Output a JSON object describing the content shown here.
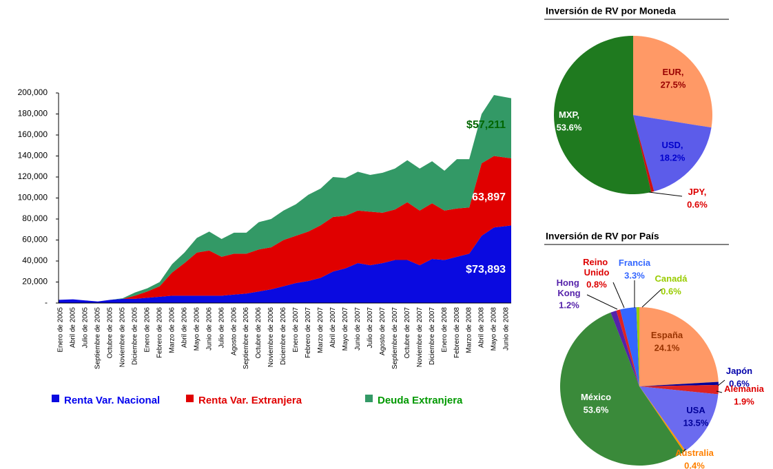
{
  "chart_data": [
    {
      "type": "area",
      "stacked": true,
      "categories": [
        "Enero de 2005",
        "Abril de 2005",
        "Julio de 2005",
        "Septiembre de 2005",
        "Octubre de 2005",
        "Noviembre de 2005",
        "Diciembre de 2005",
        "Enero de 2006",
        "Febrero de 2006",
        "Marzo de 2006",
        "Abril de 2006",
        "Mayo de 2006",
        "Junio de 2006",
        "Julio de 2006",
        "Agosto de 2006",
        "Septiembre de 2006",
        "Octubre de 2006",
        "Noviembre de 2006",
        "Diciembre de 2006",
        "Enero de 2007",
        "Febrero de 2007",
        "Marzo de 2007",
        "Abril de 2007",
        "Mayo de 2007",
        "Junio de 2007",
        "Julio de 2007",
        "Agosto de 2007",
        "Septiembre de 2007",
        "Octubre de 2007",
        "Noviembre de 2007",
        "Diciembre de 2007",
        "Enero de 2008",
        "Febrero de 2008",
        "Marzo de 2008",
        "Abril de 2008",
        "Mayo de 2008",
        "Junio de 2008"
      ],
      "series": [
        {
          "name": "Renta Var. Nacional",
          "color": "#0a0ae0",
          "label_color": "#ffffff",
          "end_label": "$73,893",
          "values": [
            3000,
            3500,
            2500,
            1500,
            3000,
            4000,
            4000,
            5000,
            6000,
            7000,
            7000,
            7000,
            7000,
            7000,
            8000,
            9000,
            11000,
            13000,
            16000,
            19000,
            21000,
            24000,
            30000,
            33000,
            38000,
            36000,
            38000,
            41000,
            41000,
            36000,
            42000,
            41000,
            44000,
            47000,
            64000,
            72000,
            73893
          ]
        },
        {
          "name": "Renta Var. Extranjera",
          "color": "#e00000",
          "label_color": "#ffffff",
          "end_label": "$63,897",
          "values": [
            0,
            0,
            0,
            0,
            0,
            0,
            3000,
            6000,
            10000,
            22000,
            31000,
            41000,
            43000,
            37000,
            39000,
            38000,
            40000,
            40000,
            44000,
            45000,
            47000,
            50000,
            52000,
            50000,
            50000,
            51000,
            48000,
            48000,
            55000,
            52000,
            53000,
            47000,
            46000,
            44000,
            69000,
            68000,
            63897
          ]
        },
        {
          "name": "Deuda Extranjera",
          "color": "#339966",
          "label_color": "#006600",
          "end_label": "$57,211",
          "values": [
            0,
            0,
            0,
            0,
            0,
            500,
            3000,
            3000,
            4000,
            8000,
            10000,
            14000,
            18000,
            17000,
            20000,
            20000,
            26000,
            27000,
            28000,
            30000,
            35000,
            35000,
            38000,
            36000,
            37000,
            35000,
            38000,
            39000,
            40000,
            40000,
            40000,
            38000,
            47000,
            46000,
            47000,
            58000,
            57211
          ]
        }
      ],
      "legend_text_colors": [
        "#0000ee",
        "#e00000",
        "#009900"
      ],
      "ylim": [
        0,
        200000
      ],
      "yticks": [
        {
          "value": 0,
          "label": "-"
        },
        {
          "value": 20000,
          "label": "20,000"
        },
        {
          "value": 40000,
          "label": "40,000"
        },
        {
          "value": 60000,
          "label": "60,000"
        },
        {
          "value": 80000,
          "label": "80,000"
        },
        {
          "value": 100000,
          "label": "100,000"
        },
        {
          "value": 120000,
          "label": "120,000"
        },
        {
          "value": 140000,
          "label": "140,000"
        },
        {
          "value": 160000,
          "label": "160,000"
        },
        {
          "value": 180000,
          "label": "180,000"
        },
        {
          "value": 200000,
          "label": "200,000"
        }
      ],
      "grid": false,
      "legend": "bottom"
    },
    {
      "type": "pie",
      "title": "Inversión de RV por Moneda",
      "labels": [
        "EUR,",
        "USD,",
        "JPY,",
        "MXP,"
      ],
      "values": [
        27.5,
        18.2,
        0.6,
        53.6
      ],
      "value_labels": [
        "27.5%",
        "18.2%",
        "0.6%",
        "53.6%"
      ],
      "colors": [
        "#ff9966",
        "#5c5cea",
        "#cc1010",
        "#1f7a1f"
      ],
      "label_colors": [
        "#990000",
        "#0000cc",
        "#dd0000",
        "#ffffff"
      ]
    },
    {
      "type": "pie",
      "title": "Inversión de RV por País",
      "labels": [
        "España",
        "Japón",
        "Alemania",
        "USA",
        "Australia",
        "México",
        "Hong Kong",
        "Reino Unido",
        "Francia",
        "Canadá"
      ],
      "values": [
        24.1,
        0.6,
        1.9,
        13.5,
        0.4,
        53.6,
        1.2,
        0.8,
        3.3,
        0.6
      ],
      "value_labels": [
        "24.1%",
        "0.6%",
        "1.9%",
        "13.5%",
        "0.4%",
        "53.6%",
        "1.2%",
        "0.8%",
        "3.3%",
        "0.6%"
      ],
      "colors": [
        "#ff9966",
        "#000099",
        "#dd2222",
        "#6b6bef",
        "#ff9900",
        "#3a8a3a",
        "#5522aa",
        "#dd2222",
        "#3366ff",
        "#99cc00"
      ],
      "label_colors": [
        "#993300",
        "#0000aa",
        "#dd0000",
        "#000099",
        "#ff8000",
        "#ffffff",
        "#5522aa",
        "#dd0000",
        "#3366ff",
        "#99cc00"
      ]
    }
  ]
}
